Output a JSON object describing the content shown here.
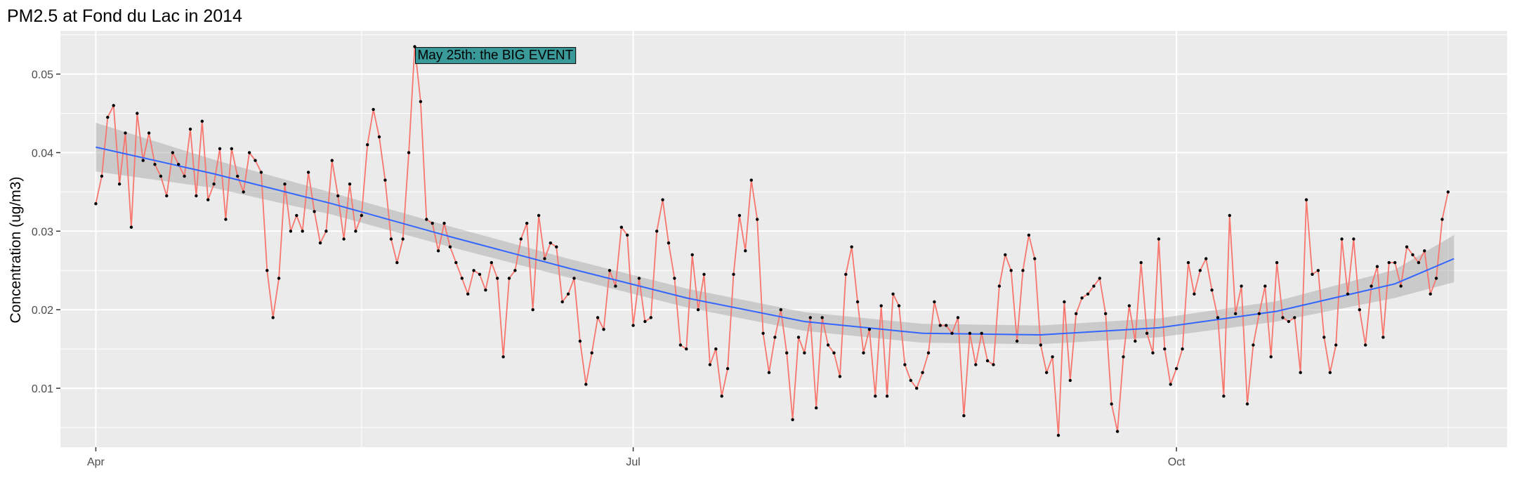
{
  "chart_data": {
    "type": "line",
    "title": "PM2.5 at Fond du Lac in 2014",
    "xlabel": "",
    "ylabel": "Concentration (ug/m3)",
    "x_start": "2014-04-01",
    "x_end": "2014-11-17",
    "x_range": [
      "2014-03-26",
      "2014-11-26"
    ],
    "ylim": [
      0.0025,
      0.0555
    ],
    "x_ticks": [
      {
        "date": "2014-04-01",
        "label": "Apr"
      },
      {
        "date": "2014-07-01",
        "label": "Jul"
      },
      {
        "date": "2014-10-01",
        "label": "Oct"
      }
    ],
    "x_minor_ticks": [
      "2014-05-16",
      "2014-08-16",
      "2014-11-16"
    ],
    "y_ticks": [
      0.01,
      0.02,
      0.03,
      0.04,
      0.05
    ],
    "y_tick_labels": [
      "0.01",
      "0.02",
      "0.03",
      "0.04",
      "0.05"
    ],
    "grid": true,
    "series": [
      {
        "values": [
          0.0335,
          0.037,
          0.0445,
          0.046,
          0.036,
          0.0425,
          0.0305,
          0.045,
          0.039,
          0.0425,
          0.0385,
          0.037,
          0.0345,
          0.04,
          0.0385,
          0.037,
          0.043,
          0.0345,
          0.044,
          0.034,
          0.036,
          0.0405,
          0.0315,
          0.0405,
          0.037,
          0.035,
          0.04,
          0.039,
          0.0375,
          0.025,
          0.019,
          0.024,
          0.036,
          0.03,
          0.032,
          0.03,
          0.0375,
          0.0325,
          0.0285,
          0.03,
          0.039,
          0.0345,
          0.029,
          0.036,
          0.03,
          0.032,
          0.041,
          0.0455,
          0.042,
          0.0365,
          0.029,
          0.026,
          0.029,
          0.04,
          0.0535,
          0.0465,
          0.0315,
          0.031,
          0.0275,
          0.031,
          0.028,
          0.026,
          0.024,
          0.022,
          0.025,
          0.0245,
          0.0225,
          0.026,
          0.024,
          0.014,
          0.024,
          0.025,
          0.029,
          0.031,
          0.02,
          0.032,
          0.0265,
          0.0285,
          0.028,
          0.021,
          0.022,
          0.024,
          0.016,
          0.0105,
          0.0145,
          0.019,
          0.0175,
          0.025,
          0.023,
          0.0305,
          0.0295,
          0.018,
          0.024,
          0.0185,
          0.019,
          0.03,
          0.034,
          0.0285,
          0.024,
          0.0155,
          0.015,
          0.027,
          0.02,
          0.0245,
          0.013,
          0.015,
          0.009,
          0.0125,
          0.0245,
          0.032,
          0.0275,
          0.0365,
          0.0315,
          0.017,
          0.012,
          0.0165,
          0.02,
          0.0145,
          0.006,
          0.0165,
          0.0145,
          0.019,
          0.0075,
          0.019,
          0.0155,
          0.0145,
          0.0115,
          0.0245,
          0.028,
          0.021,
          0.0145,
          0.0175,
          0.009,
          0.0205,
          0.009,
          0.022,
          0.0205,
          0.013,
          0.011,
          0.01,
          0.012,
          0.0145,
          0.021,
          0.018,
          0.018,
          0.017,
          0.019,
          0.0065,
          0.017,
          0.013,
          0.017,
          0.0135,
          0.013,
          0.023,
          0.027,
          0.025,
          0.016,
          0.025,
          0.0295,
          0.0265,
          0.0155,
          0.012,
          0.014,
          0.004,
          0.021,
          0.011,
          0.0195,
          0.0215,
          0.022,
          0.023,
          0.024,
          0.0195,
          0.008,
          0.0045,
          0.014,
          0.0205,
          0.016,
          0.026,
          0.017,
          0.0145,
          0.029,
          0.015,
          0.0105,
          0.0125,
          0.015,
          0.026,
          0.022,
          0.025,
          0.0265,
          0.0225,
          0.019,
          0.009,
          0.032,
          0.0195,
          0.023,
          0.008,
          0.0155,
          0.0195,
          0.023,
          0.014,
          0.026,
          0.019,
          0.0185,
          0.019,
          0.012,
          0.034,
          0.0245,
          0.025,
          0.0165,
          0.012,
          0.0155,
          0.029,
          0.022,
          0.029,
          0.02,
          0.0155,
          0.023,
          0.0255,
          0.0165,
          0.026,
          0.026,
          0.023,
          0.028,
          0.027,
          0.026,
          0.0275,
          0.022,
          0.024,
          0.0315,
          0.035
        ],
        "color": "#f8766d",
        "point_color": "#000000"
      }
    ],
    "smooth": {
      "method": "loess",
      "color": "#3366ff",
      "band_color": "#999999",
      "x": [
        "2014-04-01",
        "2014-04-21",
        "2014-05-11",
        "2014-05-31",
        "2014-06-20",
        "2014-07-10",
        "2014-07-30",
        "2014-08-19",
        "2014-09-08",
        "2014-09-28",
        "2014-10-18",
        "2014-11-07",
        "2014-11-17"
      ],
      "fit": [
        0.0407,
        0.0373,
        0.0335,
        0.0293,
        0.0253,
        0.0215,
        0.0185,
        0.017,
        0.0168,
        0.0177,
        0.0198,
        0.0233,
        0.0265
      ],
      "se": [
        0.0031,
        0.0018,
        0.0014,
        0.0013,
        0.0012,
        0.0012,
        0.0012,
        0.0012,
        0.0012,
        0.0012,
        0.0013,
        0.0018,
        0.003
      ]
    },
    "annotations": [
      {
        "text": "May 25th: the BIG EVENT",
        "date": "2014-05-25",
        "y": 0.0525,
        "fill": "#3a9999"
      }
    ]
  }
}
